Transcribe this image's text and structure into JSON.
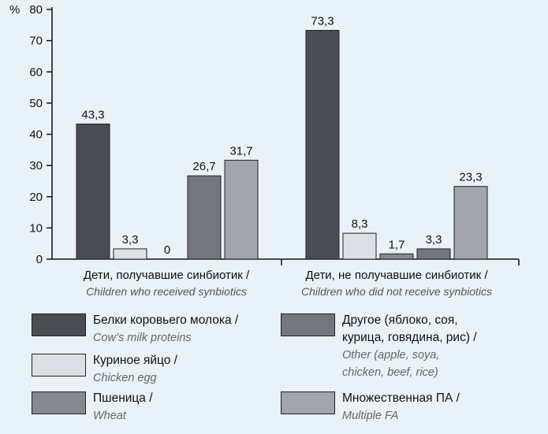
{
  "chart_data": {
    "type": "bar",
    "unit": "%",
    "ylim": [
      0,
      80
    ],
    "yticks": [
      "0",
      "10",
      "20",
      "30",
      "40",
      "50",
      "60",
      "70",
      "80"
    ],
    "groups": [
      {
        "label_ru": "Дети, получавшие синбиотик /",
        "label_en": "Children who received synbiotics",
        "values": [
          43.3,
          3.3,
          0,
          26.7,
          31.7
        ],
        "value_labels": [
          "43,3",
          "3,3",
          "0",
          "26,7",
          "31,7"
        ]
      },
      {
        "label_ru": "Дети, не получавшие синбиотик /",
        "label_en": "Children who did not receive synbiotics",
        "values": [
          73.3,
          8.3,
          1.7,
          3.3,
          23.3
        ],
        "value_labels": [
          "73,3",
          "8,3",
          "1,7",
          "3,3",
          "23,3"
        ]
      }
    ],
    "series": [
      {
        "name_ru": "Белки коровьего молока /",
        "name_en": "Cow’s milk proteins",
        "color": "#4a4c52"
      },
      {
        "name_ru": "Куриное яйцо /",
        "name_en": "Chicken egg",
        "color": "#dde0e4"
      },
      {
        "name_ru": "Пшеница /",
        "name_en": "Wheat",
        "color": "#85888f"
      },
      {
        "name_ru": "Другое (яблоко, соя,\nкурица, говядина, рис) /",
        "name_en": "Other (apple, soya,\nchicken, beef, rice)",
        "color": "#73767d"
      },
      {
        "name_ru": "Множественная ПА /",
        "name_en": "Multiple FA",
        "color": "#a2a5ab"
      }
    ],
    "grid": false,
    "legend_position": "bottom"
  }
}
